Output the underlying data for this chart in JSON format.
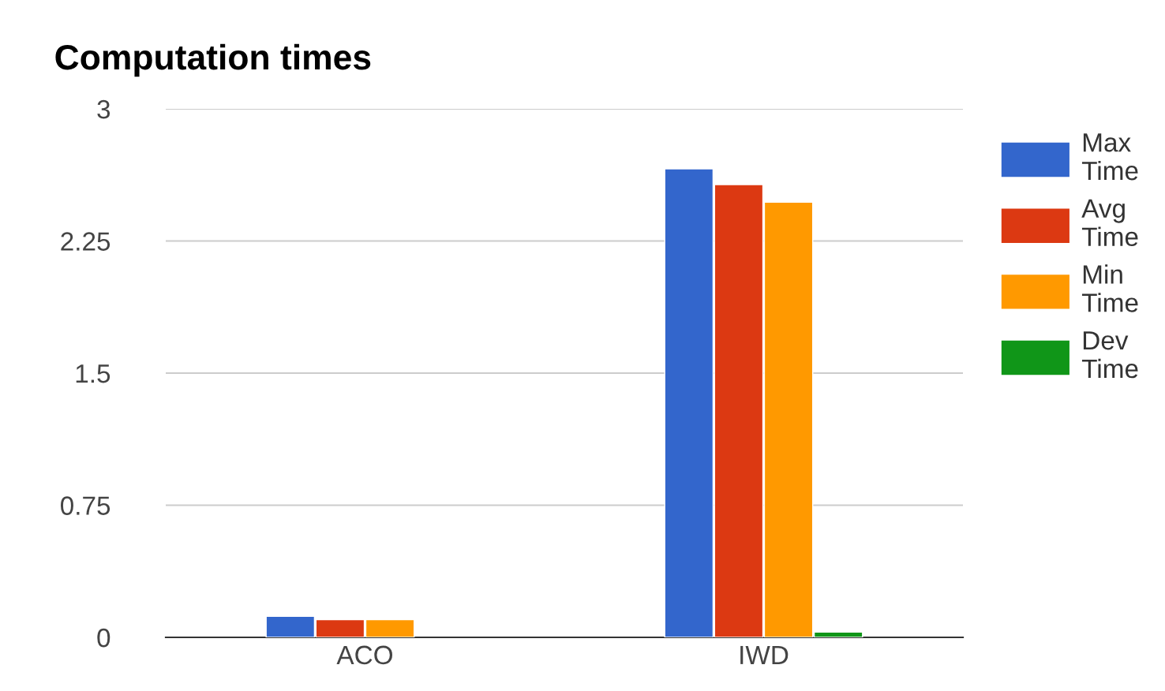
{
  "chart_data": {
    "type": "bar",
    "title": "Computation times",
    "categories": [
      "ACO",
      "IWD"
    ],
    "series": [
      {
        "name": "Max Time",
        "color": "#3366cc",
        "values": [
          0.12,
          2.66
        ]
      },
      {
        "name": "Avg Time",
        "color": "#dc3912",
        "values": [
          0.1,
          2.57
        ]
      },
      {
        "name": "Min Time",
        "color": "#ff9900",
        "values": [
          0.1,
          2.47
        ]
      },
      {
        "name": "Dev Time",
        "color": "#109618",
        "values": [
          null,
          0.03
        ]
      }
    ],
    "ylim": [
      0,
      3
    ],
    "yticks": [
      0,
      {
        "value": 0.75,
        "label": "0.75"
      },
      {
        "value": 1.5,
        "label": "1.5"
      },
      {
        "value": 2.25,
        "label": "2.25"
      },
      3
    ],
    "grid": "y",
    "legend": "right"
  }
}
